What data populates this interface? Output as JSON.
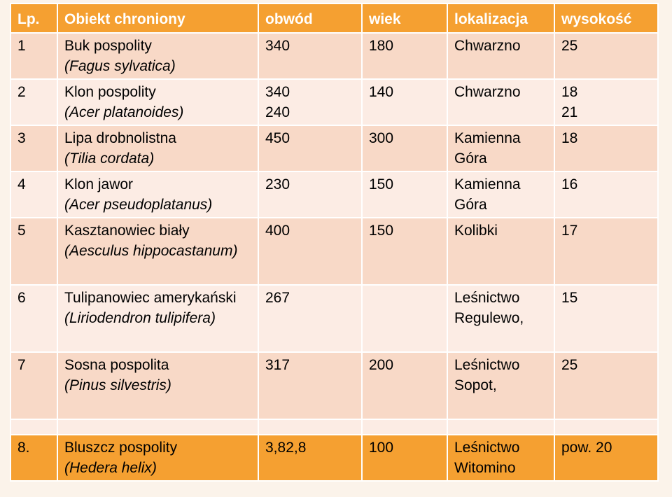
{
  "header": [
    "Lp.",
    "Obiekt chroniony",
    "obwód",
    "wiek",
    "lokalizacja",
    "wysokość"
  ],
  "rows": [
    {
      "lp": "1",
      "name": "Buk pospolity",
      "latin": "(Fagus sylvatica)",
      "obwod": [
        "340"
      ],
      "wiek": "180",
      "lok": [
        "Chwarzno"
      ],
      "wys": [
        "25"
      ]
    },
    {
      "lp": "2",
      "name": "Klon pospolity",
      "latin": "(Acer platanoides)",
      "obwod": [
        "340",
        "240"
      ],
      "wiek": "140",
      "lok": [
        "Chwarzno"
      ],
      "wys": [
        "18",
        "21"
      ]
    },
    {
      "lp": "3",
      "name": "Lipa drobnolistna",
      "latin": "(Tilia cordata)",
      "obwod": [
        "450"
      ],
      "wiek": "300",
      "lok": [
        "Kamienna",
        "Góra"
      ],
      "wys": [
        "18"
      ]
    },
    {
      "lp": "4",
      "name": "Klon jawor",
      "latin": "(Acer pseudoplatanus)",
      "obwod": [
        "230"
      ],
      "wiek": "150",
      "lok": [
        "Kamienna",
        "Góra"
      ],
      "wys": [
        "16"
      ]
    },
    {
      "lp": "5",
      "name": "Kasztanowiec biały",
      "latin": "(Aesculus hippocastanum)",
      "obwod": [
        "400"
      ],
      "wiek": "150",
      "lok": [
        "Kolibki"
      ],
      "wys": [
        "17"
      ]
    },
    {
      "lp": "6",
      "name": "Tulipanowiec amerykański",
      "latin": "(Liriodendron tulipifera)",
      "obwod": [
        "267"
      ],
      "wiek": "",
      "lok": [
        "Leśnictwo",
        "Regulewo,"
      ],
      "wys": [
        "15"
      ]
    },
    {
      "lp": "7",
      "name": "Sosna pospolita",
      "latin": "(Pinus silvestris)",
      "obwod": [
        "317"
      ],
      "wiek": "200",
      "lok": [
        "Leśnictwo",
        "Sopot,"
      ],
      "wys": [
        "25"
      ]
    }
  ],
  "last_row": {
    "lp": "8.",
    "name": "Bluszcz pospolity",
    "latin": "(Hedera helix)",
    "obwod": [
      "3,82,8"
    ],
    "wiek": "100",
    "lok": [
      "Leśnictwo",
      "Witomino"
    ],
    "wys": [
      "pow. 20"
    ]
  },
  "colors": {
    "header_bg": "#f5a031",
    "row_odd": "#f8d9c7",
    "row_even": "#fcece4",
    "border": "#ffffff"
  }
}
